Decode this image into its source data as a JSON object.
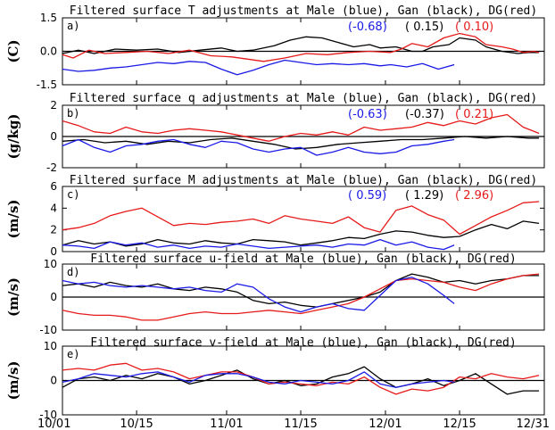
{
  "colors": {
    "male": "#1a1ae6",
    "gan": "#000000",
    "dg": "#e61a1a",
    "axis": "#000000"
  },
  "x_tick_labels": [
    "10/01",
    "10/15",
    "11/01",
    "11/15",
    "12/01",
    "12/15",
    "12/31"
  ],
  "chart_data": [
    {
      "type": "line",
      "panel": "a)",
      "title": "Filtered surface T adjustments at Male (blue), Gan (black), DG(red)",
      "ylabel": "(C)",
      "ylim": [
        -1.5,
        1.5
      ],
      "yticks": [
        "1.5",
        "0.0",
        "-1.5"
      ],
      "annotations": {
        "male": "(-0.68)",
        "gan": "( 0.15)",
        "dg": "( 0.10)"
      },
      "series": [
        {
          "key": "gan",
          "x": [
            0,
            3,
            6,
            10,
            14,
            18,
            22,
            26,
            30,
            33,
            36,
            40,
            43,
            46,
            49,
            52,
            55,
            58,
            60,
            63,
            66,
            68,
            70,
            73,
            75,
            78,
            80,
            83,
            86,
            88,
            90
          ],
          "y": [
            -0.1,
            0.05,
            -0.1,
            0.1,
            0.05,
            0.1,
            -0.05,
            0.05,
            0.15,
            0.0,
            0.05,
            0.25,
            0.5,
            0.65,
            0.6,
            0.4,
            0.2,
            0.3,
            0.15,
            0.2,
            0.0,
            0.0,
            0.2,
            0.3,
            0.6,
            0.5,
            0.2,
            0.0,
            -0.1,
            -0.05,
            -0.05
          ]
        },
        {
          "key": "dg",
          "x": [
            0,
            2,
            5,
            8,
            12,
            16,
            20,
            24,
            28,
            32,
            35,
            38,
            42,
            46,
            50,
            54,
            58,
            62,
            64,
            66,
            69,
            72,
            75,
            78,
            80,
            83,
            85,
            87,
            89,
            90
          ],
          "y": [
            -0.15,
            -0.3,
            0.05,
            -0.1,
            -0.05,
            0.0,
            -0.1,
            0.05,
            -0.2,
            -0.25,
            -0.35,
            -0.45,
            -0.3,
            -0.1,
            -0.15,
            -0.05,
            0.0,
            -0.05,
            0.1,
            0.35,
            0.2,
            0.6,
            0.8,
            0.65,
            0.3,
            0.2,
            0.1,
            -0.05,
            0.0,
            -0.05
          ]
        },
        {
          "key": "male",
          "x": [
            0,
            3,
            6,
            9,
            12,
            15,
            18,
            21,
            24,
            27,
            30,
            33,
            36,
            39,
            42,
            45,
            48,
            51,
            54,
            57,
            60,
            62,
            65,
            68,
            71,
            74
          ],
          "y": [
            -0.8,
            -0.9,
            -0.85,
            -0.75,
            -0.7,
            -0.6,
            -0.5,
            -0.55,
            -0.45,
            -0.5,
            -0.8,
            -1.05,
            -0.85,
            -0.6,
            -0.4,
            -0.5,
            -0.6,
            -0.55,
            -0.6,
            -0.55,
            -0.65,
            -0.6,
            -0.7,
            -0.55,
            -0.8,
            -0.6
          ]
        }
      ]
    },
    {
      "type": "line",
      "panel": "b)",
      "title": "Filtered surface q adjustments at Male (blue), Gan (black), DG(red)",
      "ylabel": "(g/kg)",
      "ylim": [
        -2,
        2
      ],
      "yticks": [
        "2",
        "0",
        "-2"
      ],
      "annotations": {
        "male": "(-0.63)",
        "gan": "(-0.37)",
        "dg": "( 0.21)"
      },
      "series": [
        {
          "key": "gan",
          "x": [
            0,
            4,
            8,
            12,
            16,
            20,
            24,
            28,
            32,
            36,
            40,
            44,
            48,
            52,
            56,
            60,
            64,
            68,
            72,
            76,
            80,
            84,
            88,
            90
          ],
          "y": [
            -0.3,
            -0.2,
            -0.4,
            -0.3,
            -0.5,
            -0.3,
            -0.4,
            -0.2,
            -0.1,
            -0.3,
            -0.5,
            -0.8,
            -0.7,
            -0.5,
            -0.4,
            -0.3,
            -0.2,
            -0.2,
            -0.1,
            0.0,
            -0.1,
            0.0,
            -0.1,
            -0.1
          ]
        },
        {
          "key": "dg",
          "x": [
            0,
            3,
            6,
            9,
            12,
            15,
            18,
            21,
            24,
            27,
            30,
            33,
            36,
            39,
            42,
            45,
            48,
            51,
            54,
            57,
            60,
            63,
            66,
            69,
            72,
            75,
            78,
            81,
            84,
            87,
            90
          ],
          "y": [
            1.0,
            0.7,
            0.3,
            0.2,
            0.6,
            0.3,
            0.2,
            0.4,
            0.5,
            0.4,
            0.3,
            0.1,
            -0.1,
            -0.3,
            0.0,
            0.2,
            0.1,
            0.3,
            0.1,
            0.6,
            0.4,
            0.5,
            0.6,
            0.9,
            0.7,
            1.0,
            0.8,
            1.2,
            1.4,
            0.6,
            0.2
          ]
        },
        {
          "key": "male",
          "x": [
            0,
            3,
            6,
            9,
            12,
            15,
            18,
            21,
            24,
            27,
            30,
            33,
            36,
            39,
            42,
            45,
            48,
            51,
            54,
            57,
            60,
            63,
            66,
            69,
            72,
            74
          ],
          "y": [
            -0.6,
            -0.2,
            -0.7,
            -1.0,
            -0.6,
            -0.5,
            -0.3,
            -0.2,
            -0.5,
            -0.7,
            -0.3,
            -0.4,
            -0.8,
            -1.0,
            -0.8,
            -0.7,
            -1.2,
            -1.0,
            -0.7,
            -1.0,
            -1.1,
            -1.0,
            -0.6,
            -0.5,
            -0.3,
            -0.2
          ]
        }
      ]
    },
    {
      "type": "line",
      "panel": "c)",
      "title": "Filtered surface M adjustments at Male (blue), Gan (black), DG(red)",
      "ylabel": "(m/s)",
      "ylim": [
        0,
        6
      ],
      "yticks": [
        "6",
        "4",
        "2",
        "0"
      ],
      "annotations": {
        "male": "( 0.59)",
        "gan": "( 1.29)",
        "dg": "( 2.96)"
      },
      "series": [
        {
          "key": "gan",
          "x": [
            0,
            3,
            6,
            9,
            12,
            15,
            18,
            21,
            24,
            27,
            30,
            33,
            36,
            39,
            42,
            45,
            48,
            51,
            54,
            57,
            60,
            63,
            66,
            69,
            72,
            75,
            78,
            81,
            84,
            87,
            90
          ],
          "y": [
            0.6,
            1.0,
            0.7,
            0.9,
            0.5,
            0.7,
            1.1,
            0.8,
            0.7,
            1.0,
            0.8,
            0.7,
            1.1,
            1.0,
            0.9,
            0.6,
            0.8,
            1.0,
            1.3,
            1.2,
            1.6,
            1.9,
            1.8,
            1.5,
            1.3,
            1.4,
            2.0,
            2.5,
            2.1,
            2.8,
            2.6
          ]
        },
        {
          "key": "dg",
          "x": [
            0,
            3,
            6,
            9,
            12,
            15,
            18,
            21,
            24,
            27,
            30,
            33,
            36,
            39,
            42,
            45,
            48,
            51,
            54,
            57,
            60,
            63,
            66,
            69,
            72,
            75,
            78,
            81,
            84,
            87,
            90
          ],
          "y": [
            2.0,
            2.2,
            2.6,
            3.3,
            3.7,
            4.0,
            3.2,
            2.4,
            2.6,
            2.5,
            2.7,
            2.8,
            3.0,
            2.6,
            3.3,
            3.0,
            2.8,
            2.6,
            3.2,
            2.2,
            1.8,
            3.8,
            4.2,
            3.4,
            2.9,
            1.6,
            2.4,
            3.2,
            3.8,
            4.5,
            4.6
          ]
        },
        {
          "key": "male",
          "x": [
            0,
            3,
            6,
            9,
            12,
            15,
            18,
            21,
            24,
            27,
            30,
            33,
            36,
            39,
            42,
            45,
            48,
            51,
            54,
            57,
            60,
            63,
            66,
            69,
            72,
            74
          ],
          "y": [
            0.6,
            0.5,
            0.3,
            0.9,
            0.6,
            0.8,
            0.4,
            0.6,
            0.3,
            0.5,
            0.4,
            0.7,
            0.5,
            0.3,
            0.4,
            0.5,
            0.6,
            0.4,
            0.7,
            0.6,
            1.1,
            0.6,
            0.9,
            0.4,
            0.2,
            0.6
          ]
        }
      ]
    },
    {
      "type": "line",
      "panel": "d)",
      "title": "Filtered surface u-field at Male (blue), Gan (black), DG(red)",
      "ylabel": "(m/s)",
      "ylim": [
        -10,
        10
      ],
      "yticks": [
        "10",
        "0",
        "-10"
      ],
      "series": [
        {
          "key": "gan",
          "x": [
            0,
            3,
            6,
            9,
            12,
            15,
            18,
            21,
            24,
            27,
            30,
            33,
            36,
            39,
            42,
            45,
            48,
            51,
            54,
            57,
            60,
            63,
            66,
            69,
            72,
            75,
            78,
            81,
            84,
            87,
            90
          ],
          "y": [
            3.5,
            4.0,
            3.0,
            4.5,
            3.5,
            3.0,
            4.0,
            2.5,
            2.0,
            3.0,
            2.5,
            1.5,
            -1.0,
            -2.0,
            -1.5,
            -2.5,
            -3.0,
            -2.0,
            -1.0,
            0.0,
            1.5,
            5.0,
            7.0,
            6.0,
            4.5,
            5.0,
            4.0,
            5.0,
            5.5,
            6.5,
            6.5
          ]
        },
        {
          "key": "dg",
          "x": [
            0,
            3,
            6,
            9,
            12,
            15,
            18,
            21,
            24,
            27,
            30,
            33,
            36,
            39,
            42,
            45,
            48,
            51,
            54,
            57,
            60,
            63,
            66,
            69,
            72,
            75,
            78,
            81,
            84,
            87,
            90
          ],
          "y": [
            -4.0,
            -5.0,
            -5.5,
            -5.5,
            -6.0,
            -7.0,
            -7.0,
            -6.0,
            -5.0,
            -4.5,
            -5.0,
            -5.0,
            -4.5,
            -4.0,
            -4.5,
            -5.0,
            -4.0,
            -3.0,
            -2.0,
            0.0,
            2.5,
            5.0,
            5.5,
            5.0,
            4.5,
            3.0,
            2.0,
            4.0,
            5.5,
            6.5,
            7.0
          ]
        },
        {
          "key": "male",
          "x": [
            0,
            3,
            6,
            9,
            12,
            15,
            18,
            21,
            24,
            27,
            30,
            33,
            36,
            39,
            42,
            45,
            48,
            51,
            54,
            57,
            60,
            63,
            66,
            69,
            72,
            74
          ],
          "y": [
            5.0,
            4.0,
            4.5,
            3.5,
            3.0,
            3.5,
            3.0,
            2.5,
            3.0,
            2.0,
            1.5,
            4.0,
            3.0,
            -0.5,
            -3.0,
            -4.5,
            -3.0,
            -2.0,
            -3.5,
            -4.0,
            0.5,
            5.0,
            6.0,
            4.0,
            0.5,
            -2.0
          ]
        }
      ]
    },
    {
      "type": "line",
      "panel": "e)",
      "title": "Filtered surface v-field at Male (blue), Gan (black), DG(red)",
      "ylabel": "(m/s)",
      "ylim": [
        -10,
        10
      ],
      "yticks": [
        "10",
        "0",
        "-10"
      ],
      "series": [
        {
          "key": "gan",
          "x": [
            0,
            3,
            6,
            9,
            12,
            15,
            18,
            21,
            24,
            27,
            30,
            33,
            36,
            39,
            42,
            45,
            48,
            51,
            54,
            57,
            60,
            63,
            66,
            69,
            72,
            75,
            78,
            81,
            84,
            87,
            90
          ],
          "y": [
            -2.0,
            0.5,
            1.0,
            0.0,
            1.5,
            0.5,
            2.0,
            1.0,
            -1.0,
            0.0,
            1.5,
            3.0,
            0.5,
            -1.0,
            0.0,
            -1.5,
            -1.0,
            1.0,
            2.0,
            4.0,
            0.5,
            -2.0,
            -1.0,
            0.5,
            -1.5,
            0.0,
            2.0,
            -1.0,
            -4.0,
            -3.0,
            -3.0
          ]
        },
        {
          "key": "dg",
          "x": [
            0,
            3,
            6,
            9,
            12,
            15,
            18,
            21,
            24,
            27,
            30,
            33,
            36,
            39,
            42,
            45,
            48,
            51,
            54,
            57,
            60,
            63,
            66,
            69,
            72,
            75,
            78,
            81,
            84,
            87,
            90
          ],
          "y": [
            3.0,
            3.5,
            3.0,
            4.5,
            5.0,
            3.0,
            3.5,
            2.5,
            0.5,
            1.5,
            2.5,
            2.5,
            1.0,
            -1.0,
            -0.5,
            -1.0,
            -1.5,
            -0.5,
            -1.0,
            1.0,
            -2.0,
            -4.0,
            -2.5,
            -3.0,
            -2.0,
            1.0,
            0.5,
            2.0,
            1.0,
            0.5,
            1.5
          ]
        },
        {
          "key": "male",
          "x": [
            0,
            3,
            6,
            9,
            12,
            15,
            18,
            21,
            24,
            27,
            30,
            33,
            36,
            39,
            42,
            45,
            48,
            51,
            54,
            57,
            60,
            63,
            66,
            69,
            72,
            74
          ],
          "y": [
            -0.5,
            0.5,
            2.0,
            1.5,
            1.0,
            2.0,
            2.5,
            1.0,
            -0.5,
            1.5,
            2.0,
            2.0,
            1.0,
            -0.5,
            -1.0,
            0.0,
            -0.5,
            -1.0,
            0.0,
            2.5,
            -1.0,
            -2.0,
            -1.0,
            -0.5,
            0.0,
            -0.5
          ]
        }
      ]
    }
  ]
}
